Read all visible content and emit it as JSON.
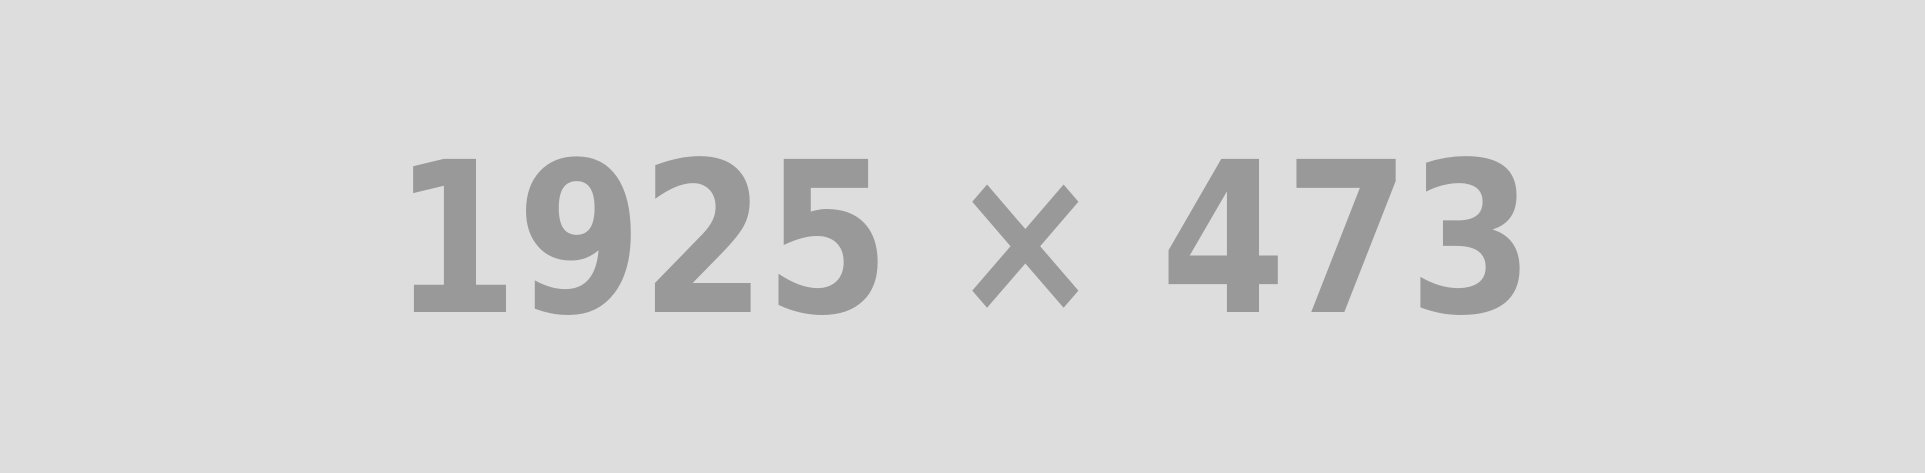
{
  "placeholder": {
    "text": "1925 × 473",
    "background_color": "#dddddd",
    "text_color": "#999999"
  }
}
